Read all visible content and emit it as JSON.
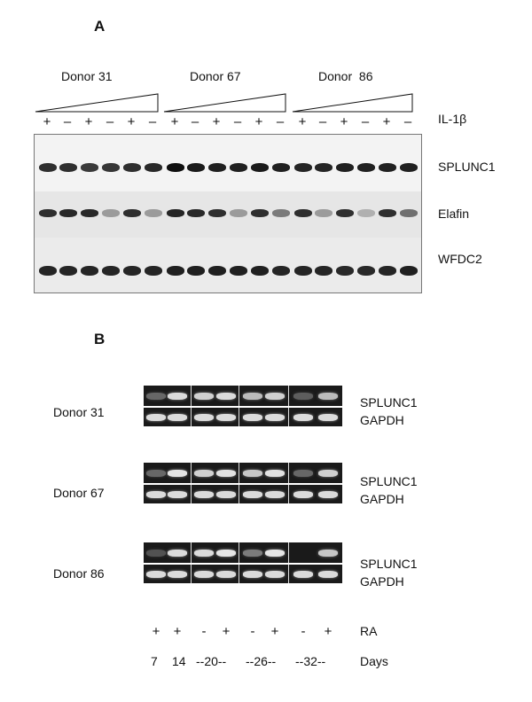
{
  "panel_a": {
    "label": "A",
    "donors": [
      "Donor 31",
      "Donor 67",
      "Donor  86"
    ],
    "treatment_label": "IL-1β",
    "lane_signs": [
      "+",
      "–",
      "+",
      "–",
      "+",
      "–",
      "+",
      "–",
      "+",
      "–",
      "+",
      "–",
      "+",
      "–",
      "+",
      "–",
      "+",
      "–"
    ],
    "genes": [
      {
        "name": "SPLUNC1",
        "intensities": [
          0.85,
          0.85,
          0.8,
          0.82,
          0.85,
          0.88,
          1.0,
          0.95,
          0.92,
          0.92,
          0.95,
          0.92,
          0.9,
          0.9,
          0.92,
          0.92,
          0.92,
          0.92
        ]
      },
      {
        "name": "Elafin",
        "intensities": [
          0.85,
          0.88,
          0.88,
          0.35,
          0.85,
          0.35,
          0.9,
          0.88,
          0.85,
          0.35,
          0.85,
          0.5,
          0.85,
          0.35,
          0.85,
          0.25,
          0.85,
          0.55
        ]
      },
      {
        "name": "WFDC2",
        "intensities": [
          0.9,
          0.9,
          0.9,
          0.9,
          0.9,
          0.9,
          0.92,
          0.92,
          0.92,
          0.92,
          0.92,
          0.9,
          0.9,
          0.9,
          0.88,
          0.88,
          0.9,
          0.92
        ]
      }
    ]
  },
  "panel_b": {
    "label": "B",
    "gene_labels": [
      "SPLUNC1",
      "GAPDH"
    ],
    "donors": [
      {
        "name": "Donor 31",
        "splunc1": [
          0.3,
          0.85,
          0.8,
          0.85,
          0.7,
          0.8,
          0.25,
          0.7
        ],
        "gapdh": [
          0.85,
          0.85,
          0.85,
          0.85,
          0.85,
          0.85,
          0.85,
          0.85
        ]
      },
      {
        "name": "Donor 67",
        "splunc1": [
          0.3,
          0.9,
          0.8,
          0.88,
          0.75,
          0.88,
          0.3,
          0.8
        ],
        "gapdh": [
          0.85,
          0.85,
          0.85,
          0.85,
          0.85,
          0.85,
          0.85,
          0.85
        ]
      },
      {
        "name": "Donor 86",
        "splunc1": [
          0.2,
          0.85,
          0.85,
          0.9,
          0.4,
          0.9,
          0.0,
          0.75
        ],
        "gapdh": [
          0.85,
          0.85,
          0.85,
          0.85,
          0.85,
          0.85,
          0.85,
          0.85
        ]
      }
    ],
    "ra_label": "RA",
    "ra_signs": [
      "+",
      "+",
      "-",
      "+",
      "-",
      "+",
      "-",
      "+"
    ],
    "days_label": "Days",
    "days": [
      "7",
      "14",
      "--20--",
      "--26--",
      "--32--"
    ]
  }
}
